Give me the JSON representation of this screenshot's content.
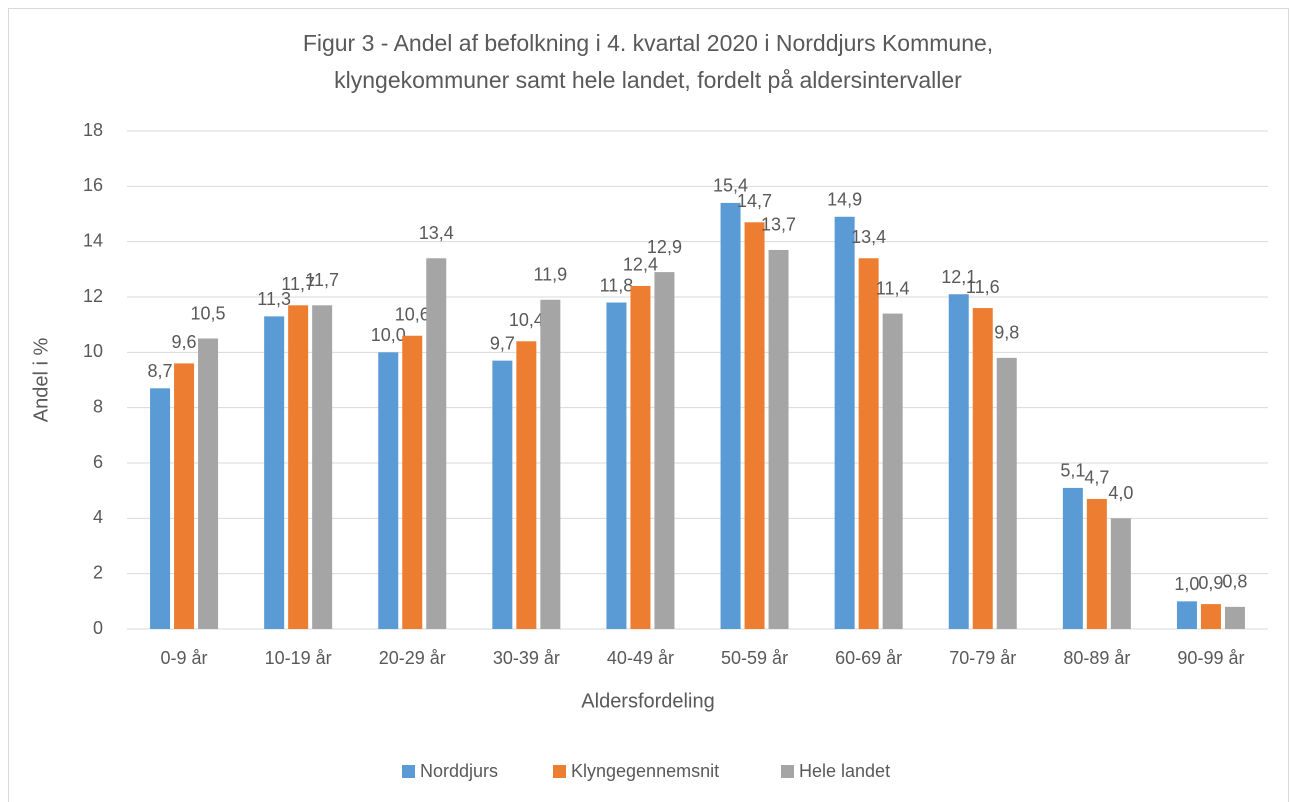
{
  "chart_data": {
    "type": "bar",
    "title": [
      "Figur 3 - Andel af befolkning i 4. kvartal 2020 i Norddjurs Kommune,",
      "klyngekommuner samt hele landet, fordelt på aldersintervaller"
    ],
    "x_label": "Aldersfordeling",
    "y_label": "Andel i %",
    "categories": [
      "0-9 år",
      "10-19 år",
      "20-29 år",
      "30-39 år",
      "40-49 år",
      "50-59 år",
      "60-69 år",
      "70-79 år",
      "80-89 år",
      "90-99 år"
    ],
    "series": [
      {
        "name": "Norddjurs",
        "color": "#5b9bd5",
        "values": [
          8.7,
          11.3,
          10.0,
          9.7,
          11.8,
          15.4,
          14.9,
          12.1,
          5.1,
          1.0
        ],
        "value_labels": [
          "8,7",
          "11,3",
          "10,0",
          "9,7",
          "11,8",
          "15,4",
          "14,9",
          "12,1",
          "5,1",
          "1,0"
        ]
      },
      {
        "name": "Klyngegennemsnit",
        "color": "#ed7d31",
        "values": [
          9.6,
          11.7,
          10.6,
          10.4,
          12.4,
          14.7,
          13.4,
          11.6,
          4.7,
          0.9
        ],
        "value_labels": [
          "9,6",
          "11,7",
          "10,6",
          "10,4",
          "12,4",
          "14,7",
          "13,4",
          "11,6",
          "4,7",
          "0,9"
        ]
      },
      {
        "name": "Hele landet",
        "color": "#a5a5a5",
        "values": [
          10.5,
          11.7,
          13.4,
          11.9,
          12.9,
          13.7,
          11.4,
          9.8,
          4.0,
          0.8
        ],
        "value_labels": [
          "10,5",
          "11,7",
          "13,4",
          "11,9",
          "12,9",
          "13,7",
          "11,4",
          "9,8",
          "4,0",
          "0,8"
        ]
      }
    ],
    "ylim": [
      0,
      18
    ],
    "yticks": [
      0,
      2,
      4,
      6,
      8,
      10,
      12,
      14,
      16,
      18
    ],
    "grid": true,
    "legend": "bottom"
  }
}
